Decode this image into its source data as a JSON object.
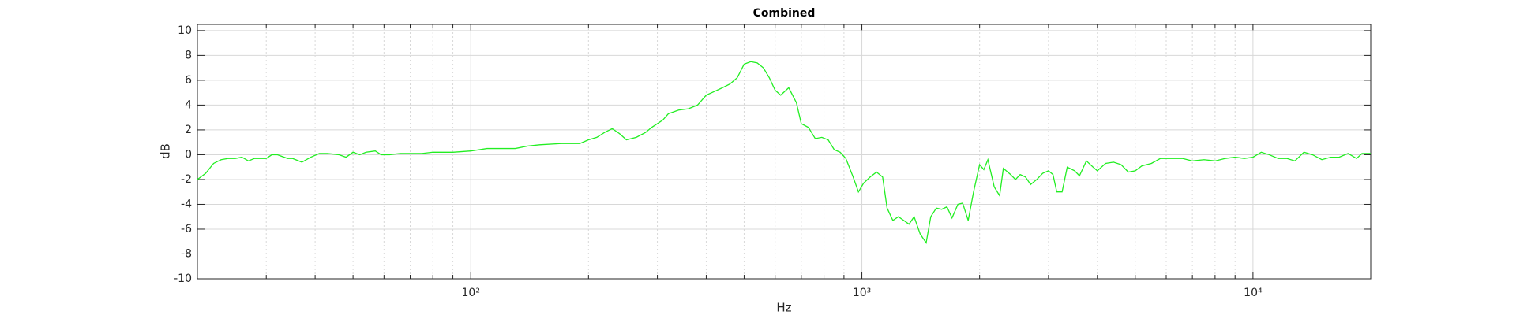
{
  "chart_data": {
    "type": "line",
    "title": "Combined",
    "x_label": "Hz",
    "y_label": "dB",
    "x": [
      20,
      21,
      22,
      23,
      24,
      25,
      26,
      27,
      28,
      30,
      31,
      32,
      34,
      35,
      37,
      39,
      41,
      43,
      46,
      48,
      50,
      52,
      54,
      57,
      59,
      62,
      66,
      70,
      75,
      80,
      86,
      90,
      100,
      110,
      120,
      130,
      140,
      150,
      170,
      190,
      200,
      210,
      220,
      230,
      240,
      250,
      265,
      280,
      290,
      300,
      310,
      320,
      340,
      360,
      380,
      400,
      420,
      440,
      460,
      480,
      500,
      520,
      540,
      560,
      580,
      600,
      620,
      650,
      680,
      700,
      730,
      760,
      790,
      820,
      850,
      880,
      910,
      950,
      980,
      1010,
      1050,
      1090,
      1130,
      1160,
      1200,
      1240,
      1280,
      1320,
      1360,
      1410,
      1460,
      1500,
      1550,
      1600,
      1650,
      1700,
      1760,
      1810,
      1870,
      1930,
      2000,
      2050,
      2100,
      2180,
      2250,
      2300,
      2400,
      2470,
      2540,
      2620,
      2700,
      2800,
      2900,
      3000,
      3080,
      3150,
      3250,
      3350,
      3500,
      3600,
      3750,
      3900,
      4000,
      4200,
      4400,
      4600,
      4800,
      5000,
      5200,
      5500,
      5800,
      6200,
      6600,
      7000,
      7500,
      8000,
      8500,
      9000,
      9500,
      10000,
      10500,
      11000,
      11600,
      12200,
      12800,
      13500,
      14200,
      15000,
      15800,
      16600,
      17500,
      18400,
      19000,
      20000
    ],
    "values": [
      -2,
      -1.5,
      -0.7,
      -0.4,
      -0.3,
      -0.3,
      -0.2,
      -0.5,
      -0.3,
      -0.3,
      0,
      0,
      -0.3,
      -0.3,
      -0.6,
      -0.2,
      0.1,
      0.1,
      0,
      -0.2,
      0.2,
      0,
      0.2,
      0.3,
      0,
      0,
      0.1,
      0.1,
      0.1,
      0.2,
      0.2,
      0.2,
      0.3,
      0.5,
      0.5,
      0.5,
      0.7,
      0.8,
      0.9,
      0.9,
      1.2,
      1.4,
      1.8,
      2.1,
      1.7,
      1.2,
      1.4,
      1.8,
      2.2,
      2.5,
      2.8,
      3.3,
      3.6,
      3.7,
      4.0,
      4.8,
      5.1,
      5.4,
      5.7,
      6.2,
      7.3,
      7.5,
      7.4,
      7.0,
      6.2,
      5.2,
      4.8,
      5.4,
      4.2,
      2.5,
      2.2,
      1.3,
      1.4,
      1.2,
      0.4,
      0.2,
      -0.3,
      -1.8,
      -3.0,
      -2.3,
      -1.8,
      -1.4,
      -1.8,
      -4.3,
      -5.3,
      -5.0,
      -5.3,
      -5.6,
      -5.0,
      -6.4,
      -7.1,
      -5.0,
      -4.3,
      -4.4,
      -4.2,
      -5.1,
      -4.0,
      -3.9,
      -5.3,
      -3.0,
      -0.8,
      -1.2,
      -0.4,
      -2.6,
      -3.3,
      -1.1,
      -1.6,
      -2.0,
      -1.6,
      -1.8,
      -2.4,
      -2.0,
      -1.5,
      -1.3,
      -1.6,
      -3.0,
      -3.0,
      -1.0,
      -1.3,
      -1.7,
      -0.5,
      -1.0,
      -1.3,
      -0.7,
      -0.6,
      -0.8,
      -1.4,
      -1.3,
      -0.9,
      -0.7,
      -0.3,
      -0.3,
      -0.3,
      -0.5,
      -0.4,
      -0.5,
      -0.3,
      -0.2,
      -0.3,
      -0.2,
      0.2,
      0,
      -0.3,
      -0.3,
      -0.5,
      0.2,
      0,
      -0.4,
      -0.2,
      -0.2,
      0.1,
      -0.3,
      0.1,
      0.1
    ],
    "color": "#22ee22",
    "xscale": "log",
    "grid": true,
    "xlim": [
      20,
      20000
    ],
    "ylim": [
      -10,
      10.5
    ],
    "xticks": [
      {
        "value": 100,
        "label": "10²"
      },
      {
        "value": 1000,
        "label": "10³"
      },
      {
        "value": 10000,
        "label": "10⁴"
      }
    ],
    "xminorticks": [
      20,
      30,
      40,
      50,
      60,
      70,
      80,
      90,
      200,
      300,
      400,
      500,
      600,
      700,
      800,
      900,
      2000,
      3000,
      4000,
      5000,
      6000,
      7000,
      8000,
      9000
    ],
    "yticks": [
      -10,
      -8,
      -6,
      -4,
      -2,
      0,
      2,
      4,
      6,
      8,
      10
    ]
  }
}
